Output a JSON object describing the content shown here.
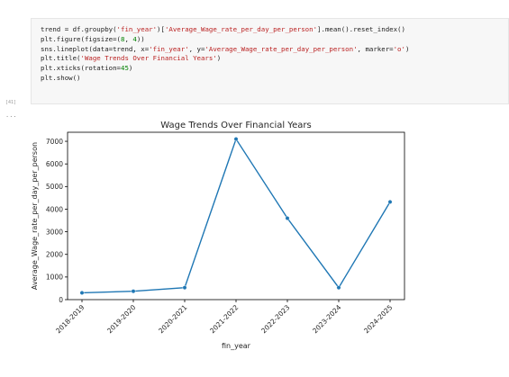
{
  "code_cell": {
    "lines": [
      [
        {
          "t": "trend = df.groupby(",
          "c": ""
        },
        {
          "t": "'fin_year'",
          "c": "str"
        },
        {
          "t": ")[",
          "c": ""
        },
        {
          "t": "'Average_Wage_rate_per_day_per_person'",
          "c": "str"
        },
        {
          "t": "].mean().reset_index()",
          "c": ""
        }
      ],
      [
        {
          "t": "plt.figure(figsize=(",
          "c": ""
        },
        {
          "t": "8",
          "c": "num"
        },
        {
          "t": ", ",
          "c": ""
        },
        {
          "t": "4",
          "c": "num"
        },
        {
          "t": "))",
          "c": ""
        }
      ],
      [
        {
          "t": "sns.lineplot(data=trend, x=",
          "c": ""
        },
        {
          "t": "'fin_year'",
          "c": "str"
        },
        {
          "t": ", y=",
          "c": ""
        },
        {
          "t": "'Average_Wage_rate_per_day_per_person'",
          "c": "str"
        },
        {
          "t": ", marker=",
          "c": ""
        },
        {
          "t": "'o'",
          "c": "str"
        },
        {
          "t": ")",
          "c": ""
        }
      ],
      [
        {
          "t": "plt.title(",
          "c": ""
        },
        {
          "t": "'Wage Trends Over Financial Years'",
          "c": "str"
        },
        {
          "t": ")",
          "c": ""
        }
      ],
      [
        {
          "t": "plt.xticks(rotation=",
          "c": ""
        },
        {
          "t": "45",
          "c": "num"
        },
        {
          "t": ")",
          "c": ""
        }
      ],
      [
        {
          "t": "plt.show()",
          "c": ""
        }
      ]
    ]
  },
  "execution_count": "[41]",
  "output_ellipsis": "...",
  "chart_data": {
    "type": "line",
    "title": "Wage Trends Over Financial Years",
    "xlabel": "fin_year",
    "ylabel": "Average_Wage_rate_per_day_per_person",
    "categories": [
      "2018-2019",
      "2019-2020",
      "2020-2021",
      "2021-2022",
      "2022-2023",
      "2023-2024",
      "2024-2025"
    ],
    "values": [
      300,
      370,
      530,
      7100,
      3600,
      530,
      4320
    ],
    "ylim": [
      0,
      7400
    ],
    "yticks": [
      0,
      1000,
      2000,
      3000,
      4000,
      5000,
      6000,
      7000
    ],
    "marker": "o",
    "grid": false,
    "colors": {
      "line": "#1f77b4",
      "axis": "#000000",
      "text": "#262626"
    }
  }
}
